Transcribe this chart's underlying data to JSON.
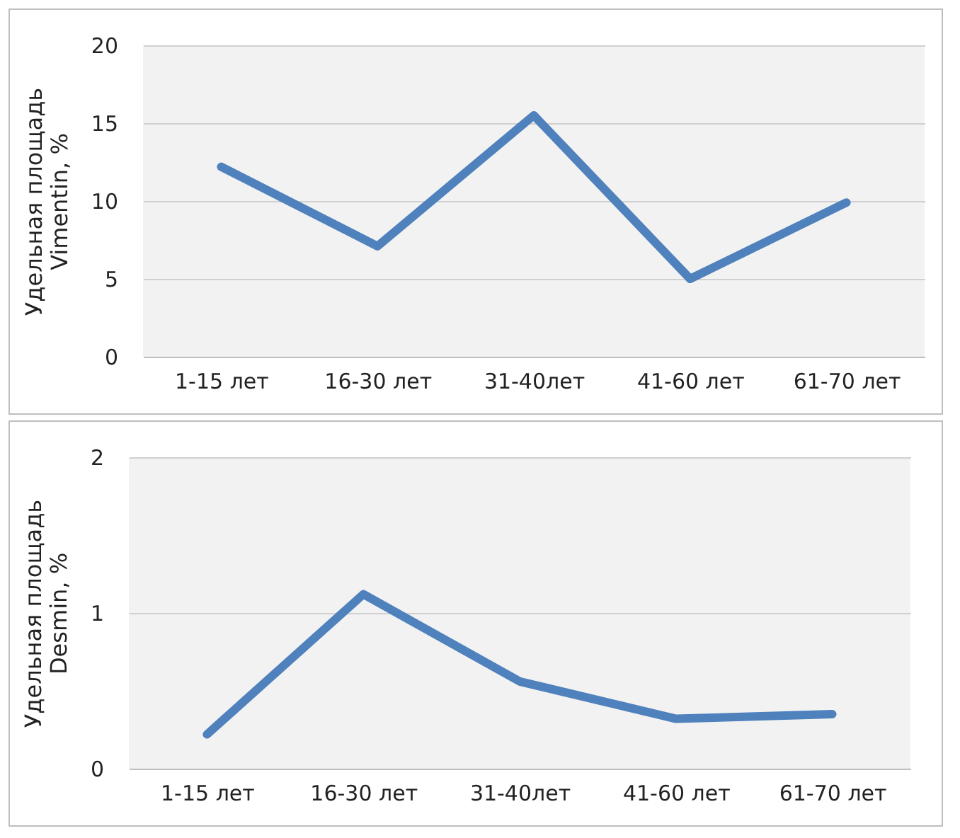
{
  "chart_data": [
    {
      "type": "line",
      "ylabel": "Удельная площадь\nVimentin, %",
      "categories": [
        "1-15 лет",
        "16-30 лет",
        "31-40лет",
        "41-60 лет",
        "61-70 лет"
      ],
      "series": [
        {
          "color": "#4f81bd",
          "values": [
            12.2,
            7.1,
            15.5,
            5.0,
            9.9
          ]
        }
      ],
      "ylim": [
        0,
        20
      ],
      "yticks": [
        0,
        5,
        10,
        15,
        20
      ],
      "grid": "y"
    },
    {
      "type": "line",
      "ylabel": "Удельная площадь\nDesmin, %",
      "categories": [
        "1-15 лет",
        "16-30 лет",
        "31-40лет",
        "41-60 лет",
        "61-70 лет"
      ],
      "series": [
        {
          "color": "#4f81bd",
          "values": [
            0.22,
            1.12,
            0.56,
            0.32,
            0.35
          ]
        }
      ],
      "ylim": [
        0,
        2
      ],
      "yticks": [
        0,
        1,
        2
      ],
      "grid": "y"
    }
  ]
}
